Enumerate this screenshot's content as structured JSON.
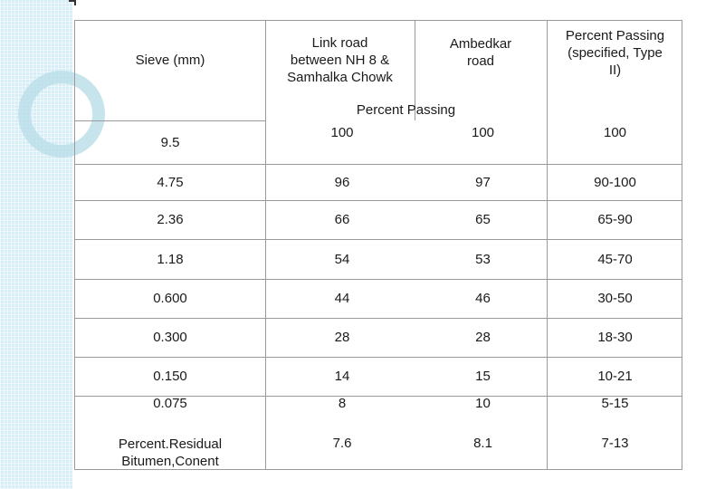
{
  "table": {
    "headers": {
      "sieve": "Sieve (mm)",
      "link_road": "Link road\nbetween NH 8 &\nSamhalka Chowk",
      "ambedkar": "Ambedkar\nroad",
      "specified": "Percent Passing\n(specified, Type\nII)",
      "sub": "Percent Passing"
    },
    "rows": [
      {
        "sieve": "9.5",
        "link": "100",
        "ambedkar": "100",
        "spec": "100"
      },
      {
        "sieve": "4.75",
        "link": "96",
        "ambedkar": "97",
        "spec": "90-100"
      },
      {
        "sieve": "2.36",
        "link": "66",
        "ambedkar": "65",
        "spec": "65-90"
      },
      {
        "sieve": "1.18",
        "link": "54",
        "ambedkar": "53",
        "spec": "45-70"
      },
      {
        "sieve": "0.600",
        "link": "44",
        "ambedkar": "46",
        "spec": "30-50"
      },
      {
        "sieve": "0.300",
        "link": "28",
        "ambedkar": "28",
        "spec": "18-30"
      },
      {
        "sieve": "0.150",
        "link": "14",
        "ambedkar": "15",
        "spec": "10-21"
      },
      {
        "sieve": "0.075",
        "link": "8",
        "ambedkar": "10",
        "spec": "5-15"
      },
      {
        "sieve": "Percent.Residual\nBitumen,Conent",
        "link": "7.6",
        "ambedkar": "8.1",
        "spec": "7-13"
      }
    ]
  }
}
